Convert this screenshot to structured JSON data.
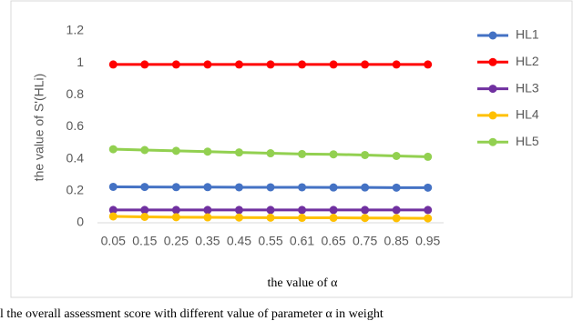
{
  "chart_data": {
    "type": "line",
    "categories": [
      "0.05",
      "0.15",
      "0.25",
      "0.35",
      "0.45",
      "0.55",
      "0.61",
      "0.65",
      "0.75",
      "0.85",
      "0.95"
    ],
    "series": [
      {
        "name": "HL1",
        "color": "#4472c4",
        "values": [
          0.225,
          0.224,
          0.223,
          0.223,
          0.222,
          0.222,
          0.222,
          0.221,
          0.221,
          0.22,
          0.22
        ]
      },
      {
        "name": "HL2",
        "color": "#ff0000",
        "values": [
          0.99,
          0.99,
          0.99,
          0.99,
          0.99,
          0.99,
          0.99,
          0.99,
          0.99,
          0.99,
          0.99
        ]
      },
      {
        "name": "HL3",
        "color": "#7030a0",
        "values": [
          0.08,
          0.08,
          0.08,
          0.08,
          0.08,
          0.08,
          0.08,
          0.08,
          0.08,
          0.08,
          0.08
        ]
      },
      {
        "name": "HL4",
        "color": "#ffc000",
        "values": [
          0.04,
          0.037,
          0.035,
          0.034,
          0.033,
          0.032,
          0.031,
          0.031,
          0.03,
          0.029,
          0.028
        ]
      },
      {
        "name": "HL5",
        "color": "#92d050",
        "values": [
          0.46,
          0.455,
          0.45,
          0.445,
          0.44,
          0.435,
          0.43,
          0.428,
          0.424,
          0.418,
          0.413
        ]
      }
    ],
    "ylim": [
      0,
      1.2
    ],
    "yticks": [
      0,
      0.2,
      0.4,
      0.6,
      0.8,
      1,
      1.2
    ],
    "y_label": "the value of S'(HLi)",
    "x_label": "the value of α",
    "caption": "l the overall assessment score with different value of parameter  α  in weight"
  }
}
